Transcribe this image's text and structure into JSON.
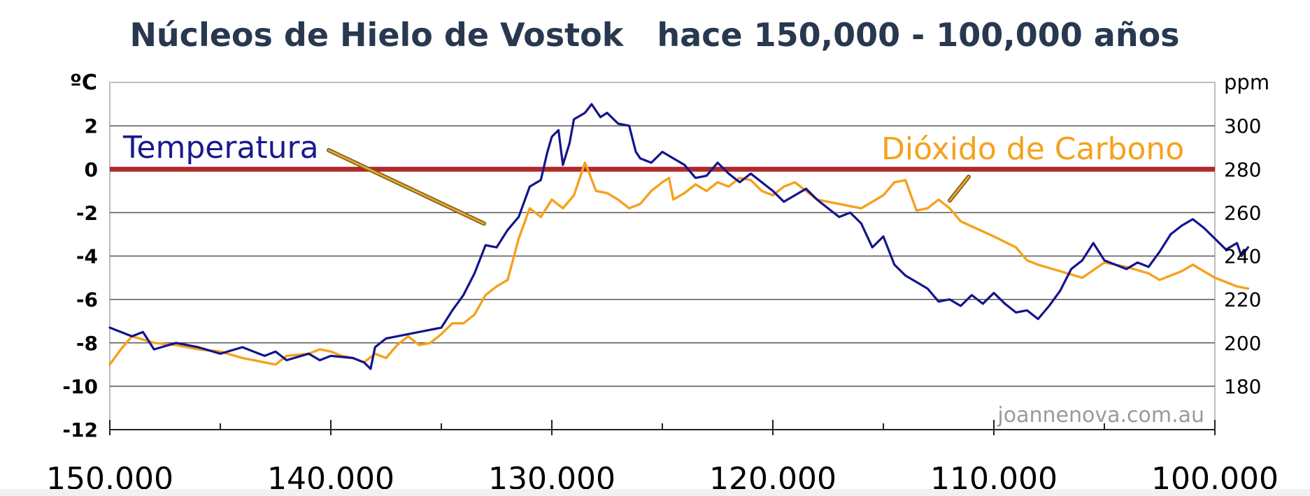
{
  "chart_data": {
    "type": "line",
    "title": "Núcleos de Hielo de Vostok   hace 150,000 - 100,000 años",
    "y_left": {
      "unit": "ºC",
      "ticks": [
        "2",
        "0",
        "-2",
        "-4",
        "-6",
        "-8",
        "-10",
        "-12"
      ],
      "range": [
        -12,
        4
      ]
    },
    "y_right": {
      "unit": "ppm",
      "ticks": [
        "300",
        "280",
        "260",
        "240",
        "220",
        "200",
        "180"
      ],
      "range": [
        160,
        320
      ]
    },
    "x": {
      "range": [
        150000,
        100000
      ],
      "ticks": [
        "150.000",
        "140.000",
        "130.000",
        "120.000",
        "110.000",
        "100.000"
      ]
    },
    "reference_line": {
      "y": 0,
      "color": "#b02a2a"
    },
    "grid": true,
    "series": [
      {
        "name": "Temperatura",
        "axis": "left",
        "color": "#14148c",
        "points": [
          [
            150000,
            -7.3
          ],
          [
            149000,
            -7.7
          ],
          [
            148500,
            -7.5
          ],
          [
            148000,
            -8.3
          ],
          [
            147000,
            -8.0
          ],
          [
            146000,
            -8.2
          ],
          [
            145000,
            -8.5
          ],
          [
            144000,
            -8.2
          ],
          [
            143000,
            -8.6
          ],
          [
            142500,
            -8.4
          ],
          [
            142000,
            -8.8
          ],
          [
            141000,
            -8.5
          ],
          [
            140500,
            -8.8
          ],
          [
            140000,
            -8.6
          ],
          [
            139000,
            -8.7
          ],
          [
            138500,
            -8.9
          ],
          [
            138200,
            -9.2
          ],
          [
            138000,
            -8.2
          ],
          [
            137500,
            -7.8
          ],
          [
            137000,
            -7.7
          ],
          [
            136000,
            -7.5
          ],
          [
            135000,
            -7.3
          ],
          [
            134500,
            -6.5
          ],
          [
            134000,
            -5.8
          ],
          [
            133500,
            -4.8
          ],
          [
            133000,
            -3.5
          ],
          [
            132500,
            -3.6
          ],
          [
            132000,
            -2.8
          ],
          [
            131500,
            -2.2
          ],
          [
            131000,
            -0.8
          ],
          [
            130500,
            -0.5
          ],
          [
            130200,
            0.8
          ],
          [
            130000,
            1.5
          ],
          [
            129700,
            1.8
          ],
          [
            129500,
            0.2
          ],
          [
            129200,
            1.2
          ],
          [
            129000,
            2.3
          ],
          [
            128500,
            2.6
          ],
          [
            128200,
            3.0
          ],
          [
            127800,
            2.4
          ],
          [
            127500,
            2.6
          ],
          [
            127000,
            2.1
          ],
          [
            126500,
            2.0
          ],
          [
            126200,
            0.8
          ],
          [
            126000,
            0.5
          ],
          [
            125500,
            0.3
          ],
          [
            125000,
            0.8
          ],
          [
            124500,
            0.5
          ],
          [
            124000,
            0.2
          ],
          [
            123500,
            -0.4
          ],
          [
            123000,
            -0.3
          ],
          [
            122500,
            0.3
          ],
          [
            122000,
            -0.2
          ],
          [
            121500,
            -0.6
          ],
          [
            121000,
            -0.2
          ],
          [
            120500,
            -0.6
          ],
          [
            120000,
            -1.0
          ],
          [
            119500,
            -1.5
          ],
          [
            119000,
            -1.2
          ],
          [
            118500,
            -0.9
          ],
          [
            118000,
            -1.4
          ],
          [
            117500,
            -1.8
          ],
          [
            117000,
            -2.2
          ],
          [
            116500,
            -2.0
          ],
          [
            116000,
            -2.5
          ],
          [
            115500,
            -3.6
          ],
          [
            115000,
            -3.1
          ],
          [
            114500,
            -4.4
          ],
          [
            114000,
            -4.9
          ],
          [
            113500,
            -5.2
          ],
          [
            113000,
            -5.5
          ],
          [
            112500,
            -6.1
          ],
          [
            112000,
            -6.0
          ],
          [
            111500,
            -6.3
          ],
          [
            111000,
            -5.8
          ],
          [
            110500,
            -6.2
          ],
          [
            110000,
            -5.7
          ],
          [
            109500,
            -6.2
          ],
          [
            109000,
            -6.6
          ],
          [
            108500,
            -6.5
          ],
          [
            108000,
            -6.9
          ],
          [
            107500,
            -6.3
          ],
          [
            107000,
            -5.6
          ],
          [
            106500,
            -4.6
          ],
          [
            106000,
            -4.2
          ],
          [
            105500,
            -3.4
          ],
          [
            105000,
            -4.2
          ],
          [
            104500,
            -4.4
          ],
          [
            104000,
            -4.6
          ],
          [
            103500,
            -4.3
          ],
          [
            103000,
            -4.5
          ],
          [
            102500,
            -3.8
          ],
          [
            102000,
            -3.0
          ],
          [
            101500,
            -2.6
          ],
          [
            101000,
            -2.3
          ],
          [
            100500,
            -2.7
          ],
          [
            100000,
            -3.2
          ],
          [
            99500,
            -3.7
          ],
          [
            99000,
            -3.4
          ],
          [
            98800,
            -4.0
          ],
          [
            98500,
            -3.6
          ]
        ]
      },
      {
        "name": "Dióxido de Carbono",
        "axis": "right",
        "color": "#f5a11c",
        "points": [
          [
            150000,
            190
          ],
          [
            149500,
            197
          ],
          [
            149000,
            203
          ],
          [
            148000,
            200
          ],
          [
            147000,
            199
          ],
          [
            146000,
            197
          ],
          [
            145000,
            196
          ],
          [
            144000,
            193
          ],
          [
            143000,
            191
          ],
          [
            142500,
            190
          ],
          [
            142000,
            194
          ],
          [
            141000,
            195
          ],
          [
            140500,
            197
          ],
          [
            140000,
            196
          ],
          [
            139500,
            194
          ],
          [
            139000,
            193
          ],
          [
            138500,
            191
          ],
          [
            138000,
            195
          ],
          [
            137500,
            193
          ],
          [
            137000,
            199
          ],
          [
            136500,
            203
          ],
          [
            136000,
            199
          ],
          [
            135500,
            200
          ],
          [
            135000,
            204
          ],
          [
            134500,
            209
          ],
          [
            134000,
            209
          ],
          [
            133500,
            213
          ],
          [
            133000,
            222
          ],
          [
            132500,
            226
          ],
          [
            132000,
            229
          ],
          [
            131500,
            248
          ],
          [
            131000,
            262
          ],
          [
            130500,
            258
          ],
          [
            130000,
            266
          ],
          [
            129500,
            262
          ],
          [
            129000,
            268
          ],
          [
            128500,
            283
          ],
          [
            128300,
            278
          ],
          [
            128000,
            270
          ],
          [
            127500,
            269
          ],
          [
            127000,
            266
          ],
          [
            126500,
            262
          ],
          [
            126000,
            264
          ],
          [
            125500,
            270
          ],
          [
            125000,
            274
          ],
          [
            124700,
            276
          ],
          [
            124500,
            266
          ],
          [
            124000,
            269
          ],
          [
            123500,
            273
          ],
          [
            123000,
            270
          ],
          [
            122500,
            274
          ],
          [
            122000,
            272
          ],
          [
            121500,
            276
          ],
          [
            121000,
            275
          ],
          [
            120500,
            270
          ],
          [
            120000,
            268
          ],
          [
            119500,
            272
          ],
          [
            119000,
            274
          ],
          [
            118500,
            270
          ],
          [
            118000,
            266
          ],
          [
            117000,
            264
          ],
          [
            116000,
            262
          ],
          [
            115000,
            268
          ],
          [
            114500,
            274
          ],
          [
            114000,
            275
          ],
          [
            113500,
            261
          ],
          [
            113000,
            262
          ],
          [
            112500,
            266
          ],
          [
            112000,
            262
          ],
          [
            111500,
            256
          ],
          [
            110000,
            249
          ],
          [
            109000,
            244
          ],
          [
            108500,
            238
          ],
          [
            108000,
            236
          ],
          [
            107000,
            233
          ],
          [
            106000,
            230
          ],
          [
            105000,
            237
          ],
          [
            104000,
            235
          ],
          [
            103000,
            232
          ],
          [
            102500,
            229
          ],
          [
            101500,
            233
          ],
          [
            101000,
            236
          ],
          [
            100000,
            230
          ],
          [
            99000,
            226
          ],
          [
            98500,
            225
          ]
        ]
      }
    ],
    "annotations": [
      {
        "text": "Temperatura",
        "points_to": "Temperatura"
      },
      {
        "text": "Dióxido de Carbono",
        "points_to": "Dióxido de Carbono"
      }
    ],
    "watermark": "joannenova.com.au"
  }
}
